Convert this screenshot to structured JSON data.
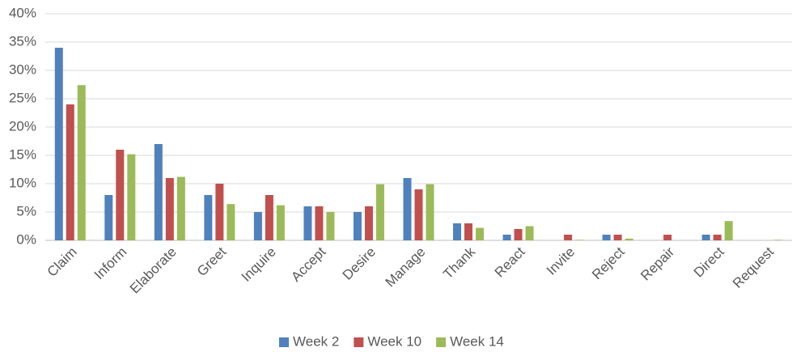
{
  "chart_data": {
    "type": "bar",
    "categories": [
      "Claim",
      "Inform",
      "Elaborate",
      "Greet",
      "Inquire",
      "Accept",
      "Desire",
      "Manage",
      "Thank",
      "React",
      "Invite",
      "Reject",
      "Repair",
      "Direct",
      "Request"
    ],
    "series": [
      {
        "name": "Week 2",
        "color": "#4f81bd",
        "values": [
          34,
          8,
          17,
          8,
          5,
          6,
          5,
          11,
          3,
          1,
          0,
          1,
          0,
          1,
          0
        ]
      },
      {
        "name": "Week 10",
        "color": "#c0504d",
        "values": [
          24,
          16,
          11,
          10,
          8,
          6,
          6,
          9,
          3,
          2,
          1,
          1,
          1,
          1,
          0
        ]
      },
      {
        "name": "Week 14",
        "color": "#9bbb59",
        "values": [
          27.4,
          15.2,
          11.2,
          6.4,
          6.2,
          5,
          9.9,
          9.9,
          2.2,
          2.5,
          0.1,
          0.3,
          0,
          3.4,
          0.1
        ]
      }
    ],
    "ylim": [
      0,
      40
    ],
    "yticks": [
      {
        "value": 0,
        "label": "0%"
      },
      {
        "value": 5,
        "label": "5%"
      },
      {
        "value": 10,
        "label": "10%"
      },
      {
        "value": 15,
        "label": "15%"
      },
      {
        "value": 20,
        "label": "20%"
      },
      {
        "value": 25,
        "label": "25%"
      },
      {
        "value": 30,
        "label": "30%"
      },
      {
        "value": 35,
        "label": "35%"
      },
      {
        "value": 40,
        "label": "40%"
      }
    ],
    "grid": true,
    "legend": "bottom"
  }
}
